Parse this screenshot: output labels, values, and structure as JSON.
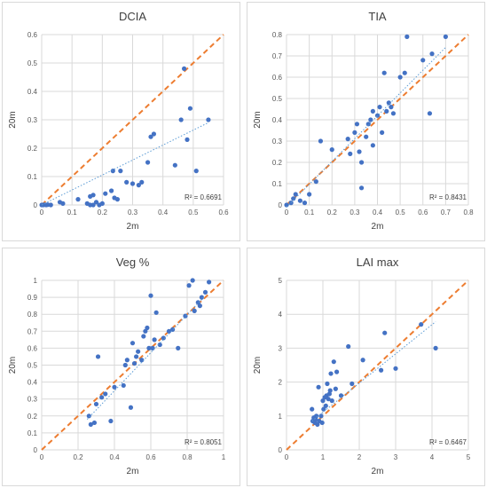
{
  "colors": {
    "points": "#4472c4",
    "one_to_one_line": "#ed7d31",
    "trendline": "#5b9bd5",
    "grid": "#d9d9d9"
  },
  "chart_data": [
    {
      "type": "scatter",
      "title": "DCIA",
      "xlabel": "2m",
      "ylabel": "20m",
      "xlim": [
        0,
        0.6
      ],
      "ylim": [
        0,
        0.6
      ],
      "xticks": [
        "0",
        "0.1",
        "0.2",
        "0.3",
        "0.4",
        "0.5",
        "0.6"
      ],
      "yticks": [
        "0",
        "0.1",
        "0.2",
        "0.3",
        "0.4",
        "0.5",
        "0.6"
      ],
      "r2_label": "R² = 0.6691",
      "grid": true,
      "one_to_one_line": true,
      "trendline": [
        [
          0.0,
          0.0
        ],
        [
          0.55,
          0.29
        ]
      ],
      "points": [
        [
          0.0,
          0.0
        ],
        [
          0.005,
          0.0
        ],
        [
          0.01,
          0.001
        ],
        [
          0.015,
          0.0
        ],
        [
          0.02,
          0.001
        ],
        [
          0.03,
          0.0
        ],
        [
          0.06,
          0.01
        ],
        [
          0.07,
          0.005
        ],
        [
          0.12,
          0.02
        ],
        [
          0.15,
          0.005
        ],
        [
          0.16,
          0.0
        ],
        [
          0.16,
          0.03
        ],
        [
          0.17,
          0.035
        ],
        [
          0.17,
          0.0
        ],
        [
          0.18,
          0.01
        ],
        [
          0.19,
          0.0
        ],
        [
          0.2,
          0.005
        ],
        [
          0.21,
          0.04
        ],
        [
          0.23,
          0.05
        ],
        [
          0.235,
          0.12
        ],
        [
          0.24,
          0.025
        ],
        [
          0.25,
          0.02
        ],
        [
          0.26,
          0.12
        ],
        [
          0.28,
          0.08
        ],
        [
          0.3,
          0.075
        ],
        [
          0.32,
          0.07
        ],
        [
          0.33,
          0.08
        ],
        [
          0.35,
          0.15
        ],
        [
          0.36,
          0.24
        ],
        [
          0.37,
          0.25
        ],
        [
          0.44,
          0.14
        ],
        [
          0.46,
          0.3
        ],
        [
          0.47,
          0.48
        ],
        [
          0.48,
          0.23
        ],
        [
          0.49,
          0.34
        ],
        [
          0.51,
          0.12
        ],
        [
          0.55,
          0.3
        ]
      ]
    },
    {
      "type": "scatter",
      "title": "TIA",
      "xlabel": "2m",
      "ylabel": "20m",
      "xlim": [
        0,
        0.8
      ],
      "ylim": [
        0,
        0.8
      ],
      "xticks": [
        "0",
        "0.1",
        "0.2",
        "0.3",
        "0.4",
        "0.5",
        "0.6",
        "0.7",
        "0.8"
      ],
      "yticks": [
        "0",
        "0.1",
        "0.2",
        "0.3",
        "0.4",
        "0.5",
        "0.6",
        "0.7",
        "0.8"
      ],
      "r2_label": "R² = 0.8431",
      "grid": true,
      "one_to_one_line": true,
      "trendline": [
        [
          0.0,
          -0.01
        ],
        [
          0.7,
          0.74
        ]
      ],
      "points": [
        [
          0.0,
          0.0
        ],
        [
          0.02,
          0.01
        ],
        [
          0.03,
          0.03
        ],
        [
          0.04,
          0.05
        ],
        [
          0.06,
          0.02
        ],
        [
          0.08,
          0.01
        ],
        [
          0.1,
          0.05
        ],
        [
          0.13,
          0.11
        ],
        [
          0.15,
          0.3
        ],
        [
          0.2,
          0.26
        ],
        [
          0.27,
          0.31
        ],
        [
          0.28,
          0.24
        ],
        [
          0.3,
          0.34
        ],
        [
          0.31,
          0.38
        ],
        [
          0.32,
          0.25
        ],
        [
          0.33,
          0.2
        ],
        [
          0.33,
          0.08
        ],
        [
          0.35,
          0.32
        ],
        [
          0.36,
          0.38
        ],
        [
          0.37,
          0.4
        ],
        [
          0.38,
          0.44
        ],
        [
          0.38,
          0.28
        ],
        [
          0.4,
          0.42
        ],
        [
          0.41,
          0.46
        ],
        [
          0.42,
          0.34
        ],
        [
          0.43,
          0.62
        ],
        [
          0.44,
          0.44
        ],
        [
          0.45,
          0.48
        ],
        [
          0.46,
          0.46
        ],
        [
          0.47,
          0.43
        ],
        [
          0.5,
          0.6
        ],
        [
          0.52,
          0.62
        ],
        [
          0.53,
          0.79
        ],
        [
          0.6,
          0.68
        ],
        [
          0.63,
          0.43
        ],
        [
          0.64,
          0.71
        ],
        [
          0.7,
          0.79
        ]
      ]
    },
    {
      "type": "scatter",
      "title": "Veg %",
      "xlabel": "2m",
      "ylabel": "20m",
      "xlim": [
        0,
        1
      ],
      "ylim": [
        0,
        1
      ],
      "xticks": [
        "0",
        "0.2",
        "0.4",
        "0.6",
        "0.8",
        "1"
      ],
      "yticks": [
        "0",
        "0.1",
        "0.2",
        "0.3",
        "0.4",
        "0.5",
        "0.6",
        "0.7",
        "0.8",
        "0.9",
        "1"
      ],
      "r2_label": "R² = 0.8051",
      "grid": true,
      "one_to_one_line": true,
      "trendline": [
        [
          0.25,
          0.18
        ],
        [
          0.9,
          0.91
        ]
      ],
      "points": [
        [
          0.26,
          0.2
        ],
        [
          0.27,
          0.15
        ],
        [
          0.29,
          0.16
        ],
        [
          0.3,
          0.27
        ],
        [
          0.31,
          0.55
        ],
        [
          0.33,
          0.31
        ],
        [
          0.35,
          0.33
        ],
        [
          0.38,
          0.17
        ],
        [
          0.4,
          0.37
        ],
        [
          0.45,
          0.38
        ],
        [
          0.46,
          0.5
        ],
        [
          0.47,
          0.53
        ],
        [
          0.49,
          0.25
        ],
        [
          0.5,
          0.63
        ],
        [
          0.51,
          0.51
        ],
        [
          0.52,
          0.55
        ],
        [
          0.53,
          0.58
        ],
        [
          0.55,
          0.53
        ],
        [
          0.56,
          0.67
        ],
        [
          0.57,
          0.7
        ],
        [
          0.58,
          0.72
        ],
        [
          0.59,
          0.6
        ],
        [
          0.6,
          0.91
        ],
        [
          0.61,
          0.6
        ],
        [
          0.62,
          0.65
        ],
        [
          0.63,
          0.81
        ],
        [
          0.65,
          0.62
        ],
        [
          0.67,
          0.66
        ],
        [
          0.7,
          0.7
        ],
        [
          0.72,
          0.71
        ],
        [
          0.75,
          0.6
        ],
        [
          0.79,
          0.79
        ],
        [
          0.81,
          0.97
        ],
        [
          0.83,
          1.0
        ],
        [
          0.84,
          0.82
        ],
        [
          0.86,
          0.87
        ],
        [
          0.88,
          0.9
        ],
        [
          0.9,
          0.93
        ],
        [
          0.92,
          0.99
        ],
        [
          0.87,
          0.85
        ]
      ]
    },
    {
      "type": "scatter",
      "title": "LAI max",
      "xlabel": "2m",
      "ylabel": "20m",
      "xlim": [
        0,
        5
      ],
      "ylim": [
        0,
        5
      ],
      "xticks": [
        "0",
        "1",
        "2",
        "3",
        "4",
        "5"
      ],
      "yticks": [
        "0",
        "1",
        "2",
        "3",
        "4",
        "5"
      ],
      "r2_label": "R² = 0.6467",
      "grid": true,
      "one_to_one_line": true,
      "trendline": [
        [
          0.7,
          0.85
        ],
        [
          4.1,
          3.78
        ]
      ],
      "points": [
        [
          0.7,
          1.2
        ],
        [
          0.72,
          0.85
        ],
        [
          0.75,
          0.95
        ],
        [
          0.78,
          0.8
        ],
        [
          0.8,
          0.9
        ],
        [
          0.82,
          1.0
        ],
        [
          0.85,
          0.75
        ],
        [
          0.88,
          1.85
        ],
        [
          0.9,
          0.85
        ],
        [
          0.95,
          1.0
        ],
        [
          0.98,
          0.8
        ],
        [
          1.0,
          1.45
        ],
        [
          1.02,
          1.2
        ],
        [
          1.05,
          1.55
        ],
        [
          1.08,
          1.3
        ],
        [
          1.1,
          1.6
        ],
        [
          1.12,
          1.95
        ],
        [
          1.15,
          1.5
        ],
        [
          1.18,
          1.65
        ],
        [
          1.2,
          1.75
        ],
        [
          1.22,
          2.25
        ],
        [
          1.25,
          1.45
        ],
        [
          1.3,
          2.6
        ],
        [
          1.35,
          1.8
        ],
        [
          1.38,
          2.3
        ],
        [
          1.5,
          1.6
        ],
        [
          1.7,
          3.05
        ],
        [
          1.8,
          1.95
        ],
        [
          2.1,
          2.65
        ],
        [
          2.6,
          2.35
        ],
        [
          2.7,
          3.45
        ],
        [
          3.0,
          2.4
        ],
        [
          3.7,
          3.7
        ],
        [
          4.1,
          3.0
        ]
      ]
    }
  ]
}
